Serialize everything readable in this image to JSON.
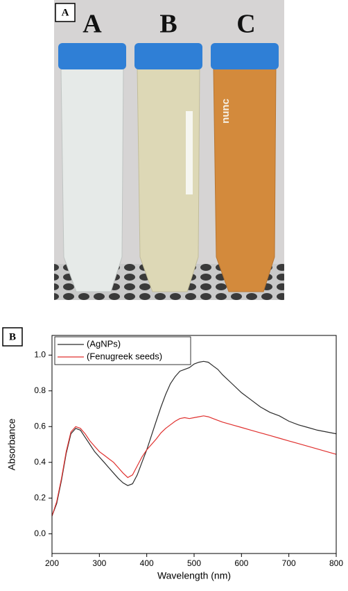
{
  "panels": [
    {
      "label": "A",
      "tube_labels": [
        "A",
        "B",
        "C"
      ],
      "tube_text": "nunc"
    },
    {
      "label": "B"
    }
  ],
  "chart_data": {
    "type": "line",
    "x_label": "Wavelength (nm)",
    "y_label": "Absorbance",
    "x": [
      200,
      210,
      220,
      230,
      240,
      250,
      260,
      270,
      280,
      290,
      300,
      310,
      320,
      330,
      340,
      350,
      360,
      370,
      380,
      390,
      400,
      410,
      420,
      430,
      440,
      450,
      460,
      470,
      480,
      490,
      500,
      510,
      520,
      530,
      540,
      550,
      560,
      580,
      600,
      620,
      640,
      660,
      680,
      700,
      720,
      740,
      760,
      780,
      800
    ],
    "series": [
      {
        "name": "(AgNPs)",
        "color": "#2b2b2b",
        "values": [
          0.1,
          0.17,
          0.3,
          0.45,
          0.56,
          0.59,
          0.58,
          0.54,
          0.5,
          0.46,
          0.43,
          0.4,
          0.37,
          0.34,
          0.31,
          0.285,
          0.27,
          0.28,
          0.33,
          0.4,
          0.47,
          0.55,
          0.63,
          0.71,
          0.78,
          0.84,
          0.88,
          0.91,
          0.92,
          0.93,
          0.95,
          0.96,
          0.965,
          0.96,
          0.94,
          0.92,
          0.89,
          0.84,
          0.79,
          0.75,
          0.71,
          0.68,
          0.66,
          0.63,
          0.61,
          0.595,
          0.58,
          0.57,
          0.56
        ]
      },
      {
        "name": "(Fenugreek seeds)",
        "color": "#e0302e",
        "values": [
          0.1,
          0.18,
          0.31,
          0.46,
          0.57,
          0.6,
          0.59,
          0.56,
          0.52,
          0.49,
          0.46,
          0.44,
          0.42,
          0.4,
          0.37,
          0.34,
          0.315,
          0.33,
          0.38,
          0.43,
          0.47,
          0.5,
          0.53,
          0.565,
          0.59,
          0.61,
          0.63,
          0.645,
          0.65,
          0.645,
          0.65,
          0.655,
          0.66,
          0.655,
          0.645,
          0.635,
          0.625,
          0.61,
          0.595,
          0.58,
          0.565,
          0.55,
          0.535,
          0.52,
          0.505,
          0.49,
          0.475,
          0.46,
          0.445
        ]
      }
    ],
    "xlim": [
      200,
      800
    ],
    "xticks": [
      200,
      300,
      400,
      500,
      600,
      700,
      800
    ],
    "ylim": [
      -0.11,
      1.11
    ],
    "yticks": [
      {
        "value": 0,
        "label": "0.0"
      },
      0.2,
      0.4,
      0.6,
      0.8,
      {
        "value": 1,
        "label": "1.0"
      }
    ],
    "legend": "upper-left"
  }
}
